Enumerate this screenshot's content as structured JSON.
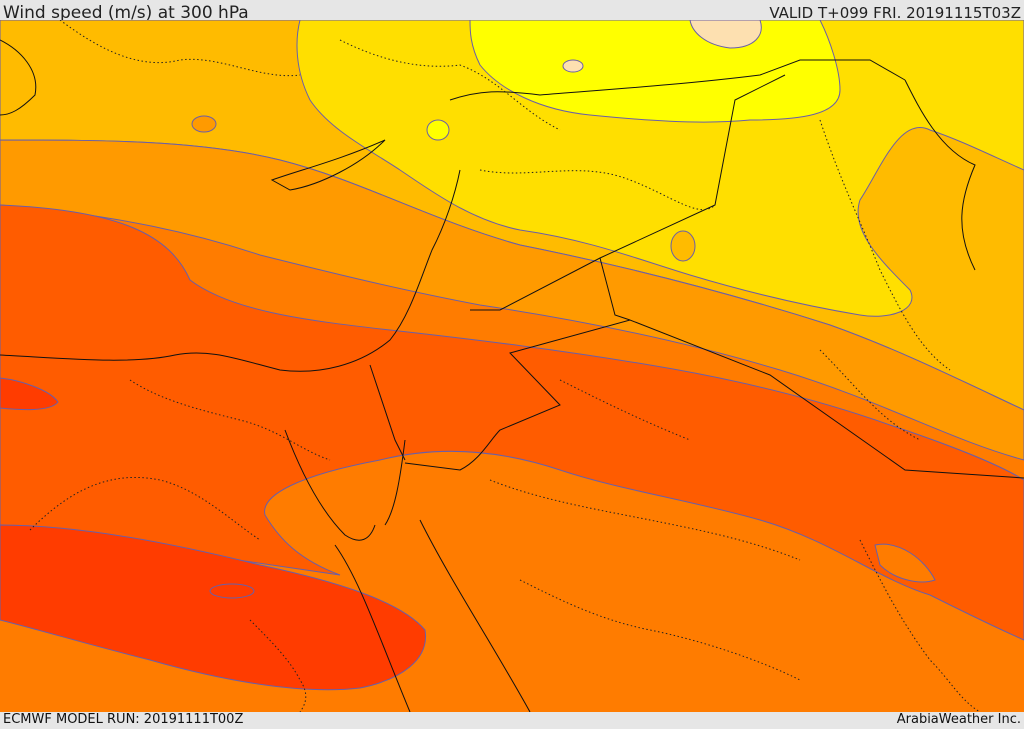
{
  "header": {
    "title": "Wind speed (m/s) at 300 hPa",
    "valid": "VALID T+099 FRI. 20191115T03Z"
  },
  "footer": {
    "model_run": "ECMWF MODEL RUN: 20191111T00Z",
    "credit": "ArabiaWeather Inc."
  },
  "map": {
    "colors": {
      "very_light": "#fde0b0",
      "yellow": "#ffff00",
      "gold": "#ffdf00",
      "amber": "#ffbb00",
      "orange": "#ff9a00",
      "dark_orange": "#ff7c00",
      "red_orange": "#ff5c00",
      "red": "#ff3c00",
      "contour": "#6a5fa8",
      "boundary": "#111111"
    }
  }
}
